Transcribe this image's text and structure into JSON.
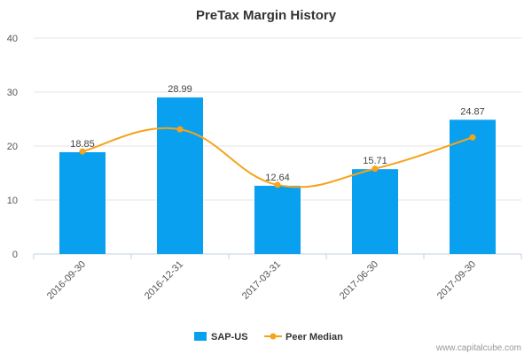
{
  "chart_data": {
    "type": "bar",
    "title": "PreTax Margin History",
    "categories": [
      "2016-09-30",
      "2016-12-31",
      "2017-03-31",
      "2017-06-30",
      "2017-09-30"
    ],
    "ylim": [
      0,
      40
    ],
    "yticks": [
      "0",
      "10",
      "20",
      "30",
      "40"
    ],
    "grid": true,
    "legend_position": "bottom",
    "series": [
      {
        "name": "SAP-US",
        "type": "bar",
        "color": "#0aa0f0",
        "values": [
          18.85,
          28.99,
          12.64,
          15.71,
          24.87
        ],
        "labels": [
          "18.85",
          "28.99",
          "12.64",
          "15.71",
          "24.87"
        ]
      },
      {
        "name": "Peer Median",
        "type": "line",
        "color": "#f5a31a",
        "values": [
          19.0,
          23.1,
          12.8,
          15.8,
          21.6
        ]
      }
    ]
  },
  "watermark": "www.capitalcube.com"
}
